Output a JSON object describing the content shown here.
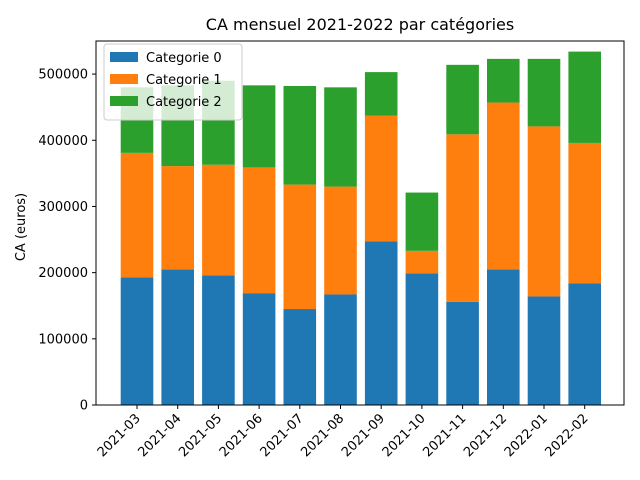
{
  "chart_data": {
    "type": "bar",
    "stacked": true,
    "title": "CA mensuel 2021-2022 par catégories",
    "xlabel": "",
    "ylabel": "CA (euros)",
    "categories": [
      "2021-03",
      "2021-04",
      "2021-05",
      "2021-06",
      "2021-07",
      "2021-08",
      "2021-09",
      "2021-10",
      "2021-11",
      "2021-12",
      "2022-01",
      "2022-02"
    ],
    "series": [
      {
        "name": "Categorie 0",
        "color": "#1f77b4",
        "values": [
          193000,
          205000,
          196000,
          169000,
          145000,
          167000,
          247000,
          199000,
          156000,
          205000,
          164000,
          184000
        ]
      },
      {
        "name": "Categorie 1",
        "color": "#ff7f0e",
        "values": [
          188000,
          156000,
          167000,
          190000,
          188000,
          163000,
          190000,
          34000,
          253000,
          252000,
          257000,
          212000
        ]
      },
      {
        "name": "Categorie 2",
        "color": "#2ca02c",
        "values": [
          99000,
          122000,
          127000,
          124000,
          149000,
          150000,
          66000,
          88000,
          105000,
          66000,
          102000,
          138000
        ]
      }
    ],
    "ylim": [
      0,
      550000
    ],
    "yticks": [
      0,
      100000,
      200000,
      300000,
      400000,
      500000
    ],
    "grid": false,
    "legend_position": "top-left"
  }
}
